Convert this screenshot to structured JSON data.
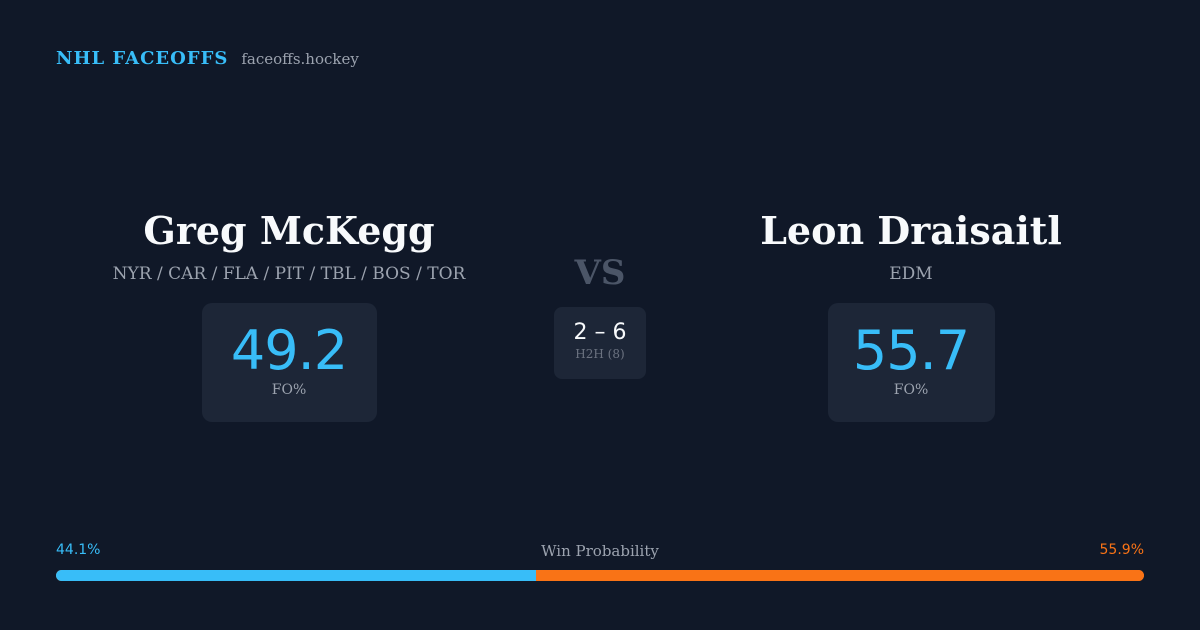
{
  "brand": {
    "title": "NHL FACEOFFS",
    "site": "faceoffs.hockey"
  },
  "players": [
    {
      "name": "Greg McKegg",
      "teams": "NYR / CAR / FLA / PIT / TBL / BOS / TOR",
      "stat_value": "49.2",
      "stat_label": "FO%"
    },
    {
      "name": "Leon Draisaitl",
      "teams": "EDM",
      "stat_value": "55.7",
      "stat_label": "FO%"
    }
  ],
  "vs_label": "VS",
  "head_to_head": {
    "score": "2 – 6",
    "label": "H2H (8)"
  },
  "win_probability": {
    "title": "Win Probability",
    "left_label": "44.1%",
    "right_label": "55.9%",
    "left_fraction": 0.441,
    "right_fraction": 0.559
  },
  "colors": {
    "background": "#101828",
    "accent_blue": "#38bdf8",
    "accent_orange": "#f97316",
    "card": "#1d2637"
  }
}
